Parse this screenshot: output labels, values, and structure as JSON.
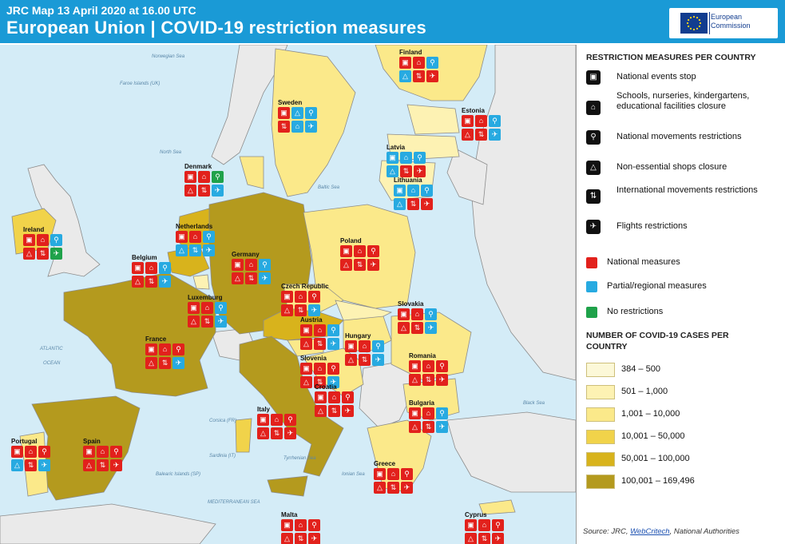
{
  "header": {
    "subtitle": "JRC Map 13 April 2020 at 16.00 UTC",
    "title": "European Union | COVID-19 restriction measures",
    "logo_text_line1": "European",
    "logo_text_line2": "Commission"
  },
  "countries": [
    {
      "name": "Finland",
      "icons": [
        "events:red",
        "schools:red",
        "movements:blue",
        "shops:blue",
        "international:red",
        "flights:red"
      ]
    },
    {
      "name": "Sweden",
      "icons": [
        "events:red",
        "shops:blue",
        "movements:blue",
        "international:red",
        "schools:blue",
        "flights:blue"
      ]
    },
    {
      "name": "Estonia",
      "icons": [
        "events:red",
        "schools:red",
        "movements:blue",
        "shops:red",
        "international:red",
        "flights:blue"
      ]
    },
    {
      "name": "Latvia",
      "icons": [
        "events:blue",
        "schools:blue",
        "movements:blue",
        "shops:blue",
        "international:red",
        "flights:red"
      ]
    },
    {
      "name": "Lithuania",
      "icons": [
        "events:blue",
        "schools:blue",
        "movements:blue",
        "shops:blue",
        "international:red",
        "flights:red"
      ]
    },
    {
      "name": "Denmark",
      "icons": [
        "events:red",
        "schools:red",
        "movements:green",
        "shops:red",
        "international:red",
        "flights:blue"
      ]
    },
    {
      "name": "Ireland",
      "icons": [
        "events:red",
        "schools:red",
        "movements:blue",
        "shops:red",
        "international:red",
        "flights:green"
      ]
    },
    {
      "name": "Netherlands",
      "icons": [
        "events:red",
        "schools:red",
        "movements:blue",
        "shops:blue",
        "international:blue",
        "flights:blue"
      ]
    },
    {
      "name": "Germany",
      "icons": [
        "events:red",
        "schools:red",
        "movements:blue",
        "shops:red",
        "international:red",
        "flights:blue"
      ]
    },
    {
      "name": "Poland",
      "icons": [
        "events:red",
        "schools:red",
        "movements:red",
        "shops:red",
        "international:red",
        "flights:red"
      ]
    },
    {
      "name": "Belgium",
      "icons": [
        "events:red",
        "schools:red",
        "movements:blue",
        "shops:red",
        "international:red",
        "flights:blue"
      ]
    },
    {
      "name": "Luxemburg",
      "icons": [
        "events:red",
        "schools:red",
        "movements:blue",
        "shops:red",
        "international:red",
        "flights:blue"
      ]
    },
    {
      "name": "Czech Republic",
      "icons": [
        "events:red",
        "schools:red",
        "movements:red",
        "shops:red",
        "international:red",
        "flights:blue"
      ]
    },
    {
      "name": "Slovakia",
      "icons": [
        "events:red",
        "schools:red",
        "movements:blue",
        "shops:red",
        "international:red",
        "flights:blue"
      ]
    },
    {
      "name": "France",
      "icons": [
        "events:red",
        "schools:red",
        "movements:red",
        "shops:red",
        "international:red",
        "flights:blue"
      ]
    },
    {
      "name": "Austria",
      "icons": [
        "events:red",
        "schools:red",
        "movements:blue",
        "shops:red",
        "international:red",
        "flights:blue"
      ]
    },
    {
      "name": "Hungary",
      "icons": [
        "events:red",
        "schools:red",
        "movements:blue",
        "shops:red",
        "international:red",
        "flights:blue"
      ]
    },
    {
      "name": "Slovenia",
      "icons": [
        "events:red",
        "schools:red",
        "movements:red",
        "shops:red",
        "international:red",
        "flights:blue"
      ]
    },
    {
      "name": "Romania",
      "icons": [
        "events:red",
        "schools:red",
        "movements:red",
        "shops:red",
        "international:red",
        "flights:red"
      ]
    },
    {
      "name": "Croatia",
      "icons": [
        "events:red",
        "schools:red",
        "movements:red",
        "shops:red",
        "international:red",
        "flights:red"
      ]
    },
    {
      "name": "Italy",
      "icons": [
        "events:red",
        "schools:red",
        "movements:red",
        "shops:red",
        "international:red",
        "flights:red"
      ]
    },
    {
      "name": "Bulgaria",
      "icons": [
        "events:red",
        "schools:red",
        "movements:blue",
        "shops:red",
        "international:red",
        "flights:blue"
      ]
    },
    {
      "name": "Portugal",
      "icons": [
        "events:red",
        "schools:red",
        "movements:red",
        "shops:blue",
        "international:red",
        "flights:blue"
      ]
    },
    {
      "name": "Spain",
      "icons": [
        "events:red",
        "schools:red",
        "movements:red",
        "shops:red",
        "international:red",
        "flights:red"
      ]
    },
    {
      "name": "Greece",
      "icons": [
        "events:red",
        "schools:red",
        "movements:red",
        "shops:red",
        "international:red",
        "flights:red"
      ]
    },
    {
      "name": "Malta",
      "icons": [
        "events:red",
        "schools:red",
        "movements:red",
        "shops:red",
        "international:red",
        "flights:red"
      ]
    },
    {
      "name": "Cyprus",
      "icons": [
        "events:red",
        "schools:red",
        "movements:red",
        "shops:red",
        "international:red",
        "flights:red"
      ]
    }
  ],
  "sea_labels": {
    "norwegian_sea": "Norwegian Sea",
    "faroe": "Faroe Islands (UK)",
    "north_sea": "North Sea",
    "baltic_sea": "Baltic Sea",
    "atlantic": "ATLANTIC",
    "ocean": "OCEAN",
    "black_sea": "Black Sea",
    "mediterranean": "MEDITERRANEAN SEA",
    "tyrrhenian": "Tyrrhenian Sea",
    "ionian": "Ionian Sea",
    "balearic": "Balearic Islands (SP)",
    "corsica": "Corsica (FR)",
    "sardinia": "Sardinia (IT)"
  },
  "legend": {
    "measures_heading": "RESTRICTION MEASURES PER COUNTRY",
    "measures": [
      {
        "icon": "events-icon",
        "label": "National events stop"
      },
      {
        "icon": "schools-icon",
        "label": "Schools, nurseries, kindergartens, educational facilities closure"
      },
      {
        "icon": "movements-icon",
        "label": "National movements restrictions"
      },
      {
        "icon": "shops-icon",
        "label": "Non-essential shops closure"
      },
      {
        "icon": "international-icon",
        "label": "International movements restrictions"
      },
      {
        "icon": "flights-icon",
        "label": "Flights restrictions"
      }
    ],
    "levels": [
      {
        "label": "National measures",
        "color": "#e2211c"
      },
      {
        "label": "Partial/regional measures",
        "color": "#27aae1"
      },
      {
        "label": "No restrictions",
        "color": "#1fa24a"
      }
    ],
    "cases_heading": "NUMBER OF COVID-19 CASES PER COUNTRY",
    "cases": [
      {
        "label": "384 – 500",
        "color": "#fcf8d8"
      },
      {
        "label": "501 – 1,000",
        "color": "#fdf2b3"
      },
      {
        "label": "1,001 – 10,000",
        "color": "#fbe98a"
      },
      {
        "label": "10,001 – 50,000",
        "color": "#f1d34a"
      },
      {
        "label": "50,001 – 100,000",
        "color": "#d8b31c"
      },
      {
        "label": "100,001 – 169,496",
        "color": "#b49a1e"
      }
    ],
    "source_prefix": "Source: JRC, ",
    "source_link": "WebCritech",
    "source_suffix": ", National Authorities"
  }
}
